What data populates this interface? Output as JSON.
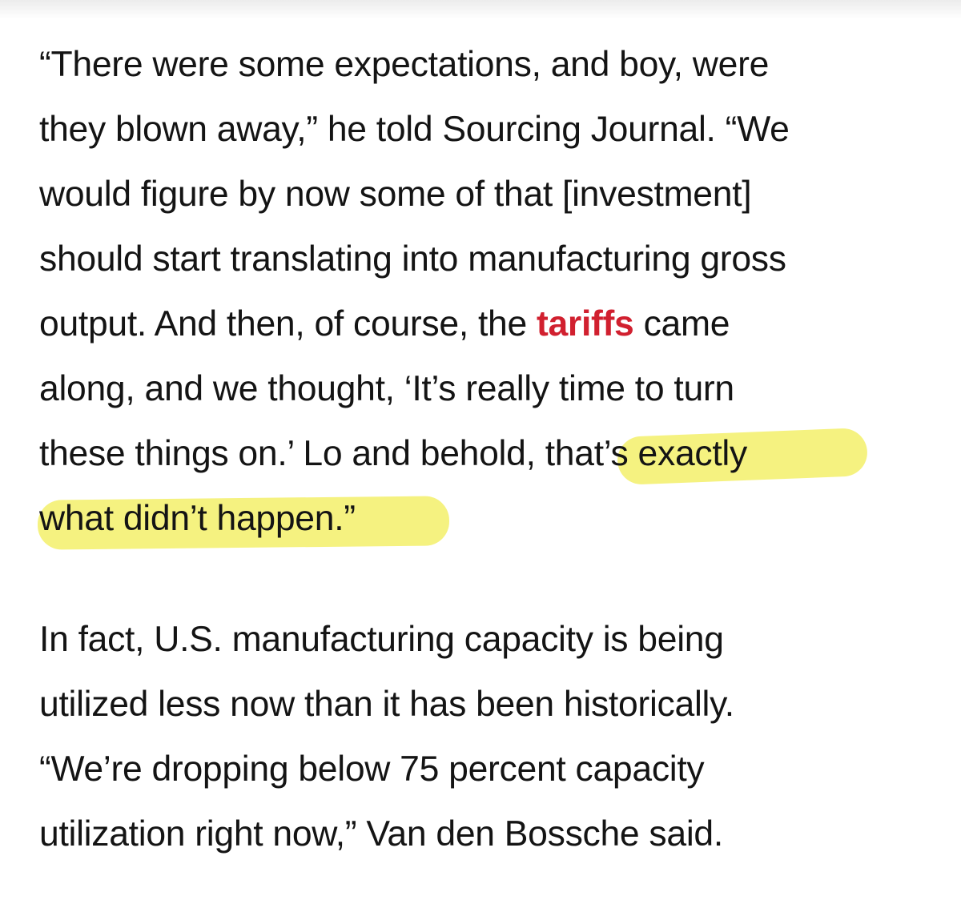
{
  "article": {
    "paragraph1": {
      "line1": "“There were some expectations, and boy, were",
      "line2": "they blown away,” he told Sourcing Journal. “We",
      "line3": "would figure by now some of that [investment]",
      "line4": "should start translating into manufacturing gross",
      "line5_before": "output. And then, of course, the ",
      "line5_link": "tariffs",
      "line5_after": " came",
      "line6": "along, and we thought, ‘It’s really time to turn",
      "line7_before": "these things on.’  Lo and behold",
      "line7_highlight": ", that’s exactly",
      "line8_highlight": "what didn’t happen.”"
    },
    "paragraph2": {
      "line1": "In fact, U.S. manufacturing capacity is being",
      "line2": "utilized less now than it has been historically.",
      "line3": "“We’re dropping below 75 percent capacity",
      "line4": "utilization right now,” Van den Bossche said."
    },
    "colors": {
      "text": "#141414",
      "link": "#d1202f",
      "highlight": "#f3f06a"
    }
  }
}
